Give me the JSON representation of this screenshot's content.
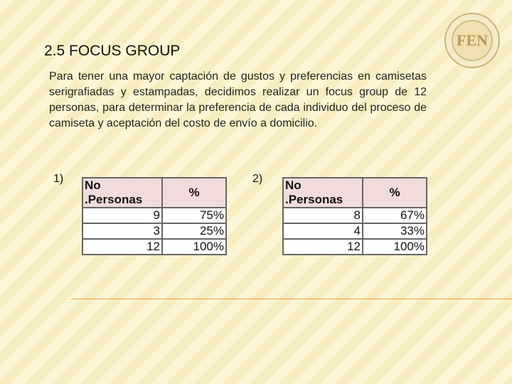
{
  "header": {
    "title": "2.5 FOCUS GROUP",
    "logo": "FEN"
  },
  "body": {
    "paragraph": "Para tener una mayor captación de gustos y preferencias en camisetas serigrafiadas y estampadas, decidimos realizar un focus group de 12 personas, para determinar la preferencia de cada individuo del proceso de camiseta y aceptación del costo de envío a domicilio."
  },
  "tables": [
    {
      "label": "1)",
      "columns": [
        "No .Personas",
        "%"
      ],
      "rows": [
        [
          "9",
          "75%"
        ],
        [
          "3",
          "25%"
        ],
        [
          "12",
          "100%"
        ]
      ]
    },
    {
      "label": "2)",
      "columns": [
        "No .Personas",
        "%"
      ],
      "rows": [
        [
          "8",
          "67%"
        ],
        [
          "4",
          "33%"
        ],
        [
          "12",
          "100%"
        ]
      ]
    }
  ]
}
